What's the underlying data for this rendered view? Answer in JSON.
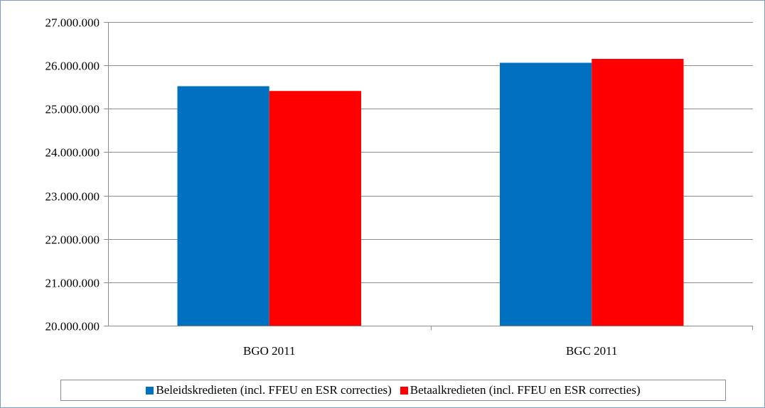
{
  "chart_data": {
    "type": "bar",
    "title": "",
    "xlabel": "",
    "ylabel": "",
    "categories": [
      "BGO 2011",
      "BGC 2011"
    ],
    "series": [
      {
        "name": "Beleidskredieten (incl. FFEU en ESR correcties)",
        "color": "#0070C0",
        "values": [
          25520000,
          26060000
        ]
      },
      {
        "name": "Betaalkredieten (incl. FFEU en ESR correcties)",
        "color": "#FF0000",
        "values": [
          25410000,
          26150000
        ]
      }
    ],
    "ylim": [
      20000000,
      27000000
    ],
    "yticks": [
      20000000,
      21000000,
      22000000,
      23000000,
      24000000,
      25000000,
      26000000,
      27000000
    ],
    "ytick_labels": [
      "20.000.000",
      "21.000.000",
      "22.000.000",
      "23.000.000",
      "24.000.000",
      "25.000.000",
      "26.000.000",
      "27.000.000"
    ],
    "grid": true,
    "legend_position": "bottom"
  }
}
